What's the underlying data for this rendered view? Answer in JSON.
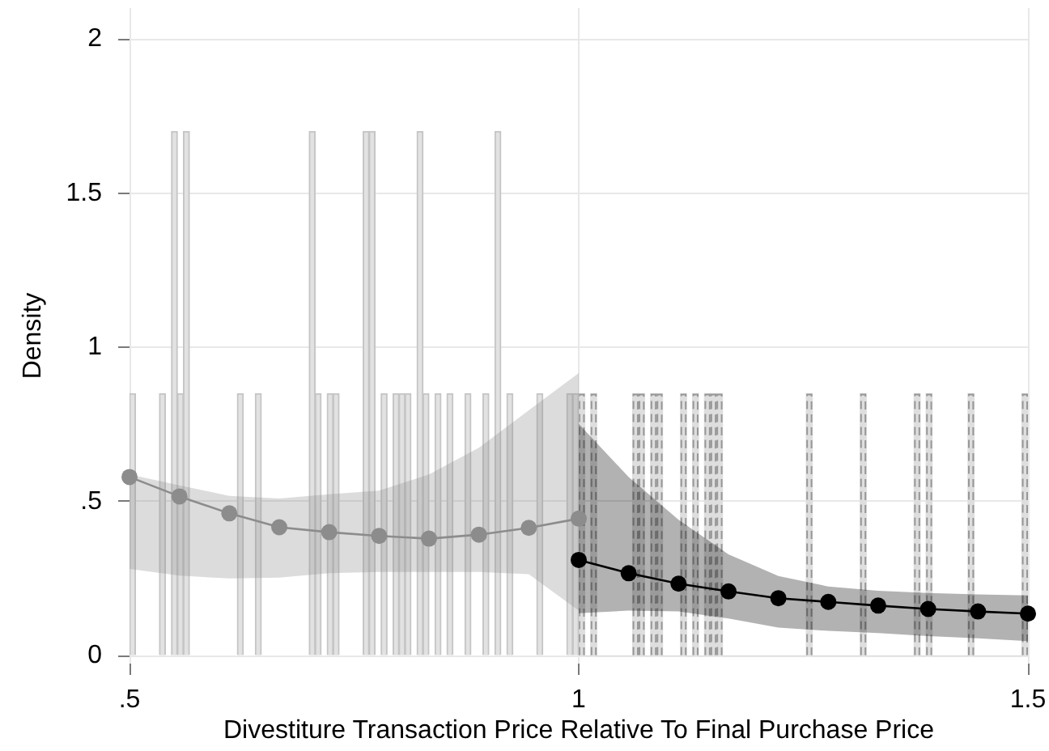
{
  "chart_data": {
    "type": "histogram",
    "xlabel": "Divestiture Transaction Price Relative To Final Purchase Price",
    "ylabel": "Density",
    "xlim": [
      0.5,
      1.5
    ],
    "ylim": [
      -0.025,
      2.1
    ],
    "xticks": [
      {
        "value": 0.5,
        "label": ".5"
      },
      1,
      1.5
    ],
    "yticks": [
      0,
      {
        "value": 0.5,
        "label": ".5"
      },
      1,
      1.5,
      2
    ],
    "grid": true,
    "marker": "circle",
    "series": [
      {
        "color": "#e2e2e2",
        "bins": [
          0.5,
          0.5067,
          0.5333,
          0.54,
          0.5467,
          0.5533,
          0.56,
          0.5667,
          0.62,
          0.6267,
          0.64,
          0.6467,
          0.7,
          0.7067,
          0.7133,
          0.72,
          0.7267,
          0.7333,
          0.76,
          0.7667,
          0.7733,
          0.78,
          0.7867,
          0.7933,
          0.8,
          0.8067,
          0.8133,
          0.82,
          0.8267,
          0.8333,
          0.84,
          0.8467,
          0.8533,
          0.86,
          0.8733,
          0.88,
          0.8933,
          0.9,
          0.9067,
          0.9133,
          0.92,
          0.9267,
          0.9533,
          0.96,
          0.9867,
          0.9933,
          1.0
        ],
        "values": [
          0.85,
          0,
          0.85,
          0,
          1.7,
          0.85,
          1.7,
          0,
          0.85,
          0,
          0.85,
          0,
          1.7,
          0.85,
          0,
          0.85,
          0.85,
          0,
          1.7,
          1.7,
          0,
          0.85,
          0,
          0.85,
          0.85,
          0.85,
          0,
          1.7,
          0.85,
          0,
          0.85,
          0,
          0.85,
          0,
          0.85,
          0,
          0.85,
          0,
          1.7,
          0,
          0.85,
          0,
          0.85,
          0,
          0.85,
          0.85
        ]
      },
      {
        "color": "#dedede",
        "line_style": "dashed",
        "bins": [
          1.0,
          1.0067,
          1.0133,
          1.02,
          1.06,
          1.0667,
          1.0733,
          1.08,
          1.0867,
          1.0933,
          1.1133,
          1.12,
          1.1267,
          1.1333,
          1.14,
          1.1467,
          1.1533,
          1.16,
          1.2533,
          1.26,
          1.3133,
          1.32,
          1.3733,
          1.38,
          1.3867,
          1.3933,
          1.4333,
          1.44,
          1.4933,
          1.5
        ],
        "values": [
          0.85,
          0,
          0.85,
          0,
          0.85,
          0.85,
          0,
          0.85,
          0.85,
          0,
          0.85,
          0,
          0.85,
          0,
          0.85,
          0.85,
          0.85,
          0,
          0.85,
          0,
          0.85,
          0,
          0.85,
          0,
          0.85,
          0,
          0.85,
          0,
          0.85
        ]
      },
      {
        "type": "line",
        "color": "#8c8c8c",
        "x": [
          0.5,
          0.5556,
          0.6111,
          0.6667,
          0.7222,
          0.7778,
          0.8333,
          0.8889,
          0.9444,
          1.0
        ],
        "values": [
          0.58,
          0.517,
          0.462,
          0.417,
          0.401,
          0.389,
          0.38,
          0.393,
          0.415,
          0.445
        ],
        "lower": [
          0.282,
          0.26,
          0.251,
          0.254,
          0.268,
          0.272,
          0.272,
          0.272,
          0.265,
          0.147
        ],
        "upper": [
          0.588,
          0.553,
          0.519,
          0.51,
          0.524,
          0.536,
          0.588,
          0.675,
          0.796,
          0.917
        ]
      },
      {
        "type": "line",
        "color": "#000000",
        "x": [
          1.0,
          1.0556,
          1.1111,
          1.1667,
          1.2222,
          1.2778,
          1.3333,
          1.3889,
          1.4444,
          1.5
        ],
        "values": [
          0.311,
          0.268,
          0.234,
          0.209,
          0.187,
          0.175,
          0.163,
          0.152,
          0.144,
          0.137
        ],
        "lower": [
          0.138,
          0.147,
          0.144,
          0.121,
          0.092,
          0.081,
          0.074,
          0.064,
          0.057,
          0.048
        ],
        "upper": [
          0.752,
          0.58,
          0.441,
          0.329,
          0.259,
          0.225,
          0.211,
          0.204,
          0.199,
          0.196
        ]
      }
    ]
  }
}
